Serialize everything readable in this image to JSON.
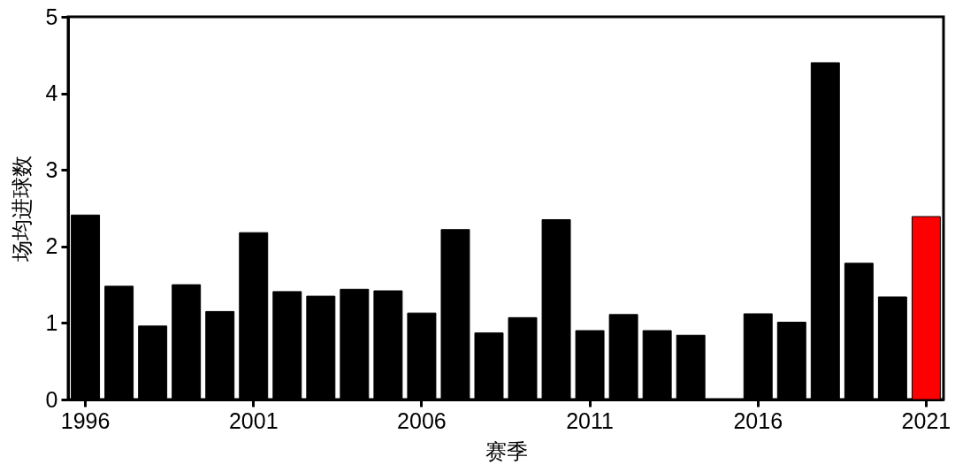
{
  "chart_data": {
    "type": "bar",
    "xlabel": "赛季",
    "ylabel": "场均进球数",
    "categories": [
      "1996",
      null,
      null,
      null,
      null,
      "2001",
      null,
      null,
      null,
      null,
      "2006",
      null,
      null,
      null,
      null,
      "2011",
      null,
      null,
      null,
      null,
      "2016",
      null,
      null,
      null,
      null,
      "2021"
    ],
    "values": [
      2.41,
      1.48,
      0.96,
      1.5,
      1.15,
      2.18,
      1.41,
      1.35,
      1.44,
      1.42,
      1.13,
      2.22,
      0.87,
      1.07,
      2.35,
      0.9,
      1.11,
      0.9,
      0.84,
      0,
      1.12,
      1.01,
      4.4,
      1.78,
      1.34,
      2.39
    ],
    "colors": [
      "#000000",
      "#000000",
      "#000000",
      "#000000",
      "#000000",
      "#000000",
      "#000000",
      "#000000",
      "#000000",
      "#000000",
      "#000000",
      "#000000",
      "#000000",
      "#000000",
      "#000000",
      "#000000",
      "#000000",
      "#000000",
      "#000000",
      "#000000",
      "#000000",
      "#000000",
      "#000000",
      "#000000",
      "#000000",
      "#ff0000"
    ],
    "ylim": [
      0,
      5
    ],
    "yticks": [
      0,
      1,
      2,
      3,
      4,
      5
    ]
  }
}
